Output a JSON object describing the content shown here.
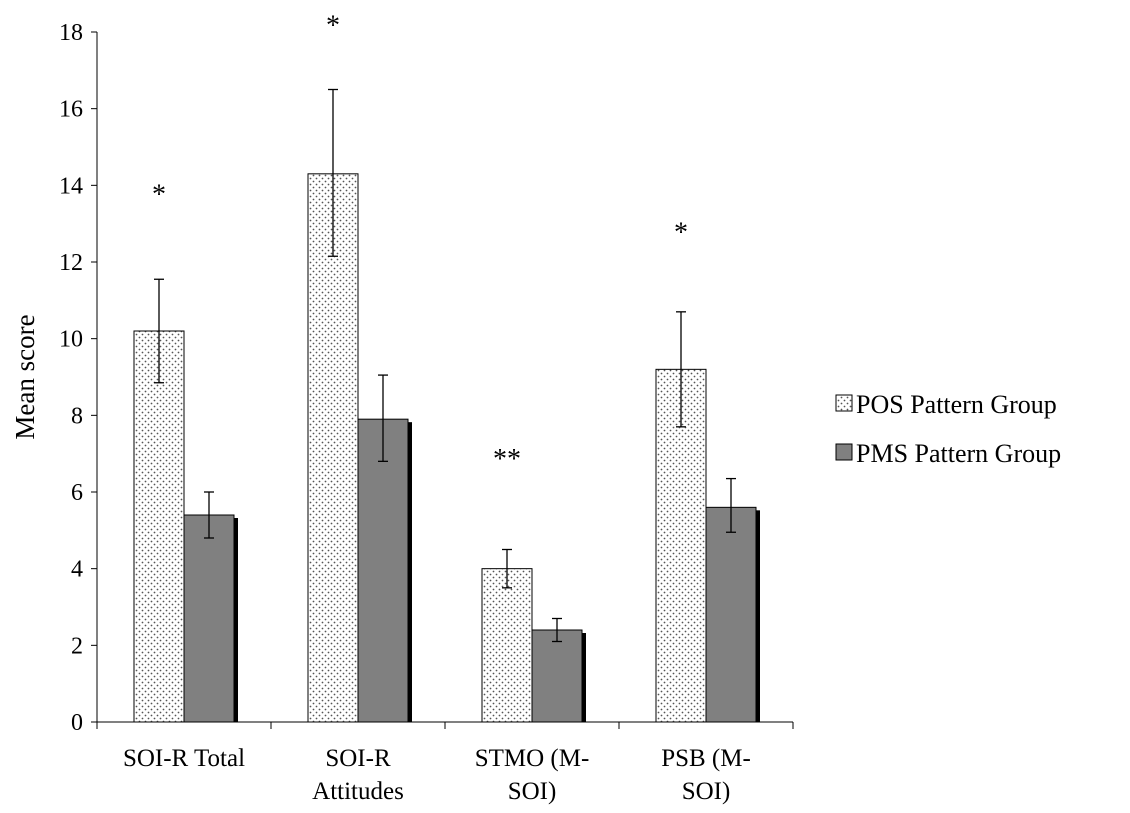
{
  "chart_data": {
    "type": "bar",
    "ylabel": "Mean score",
    "ylim": [
      0,
      18
    ],
    "yticks": [
      0,
      2,
      4,
      6,
      8,
      10,
      12,
      14,
      16,
      18
    ],
    "categories": [
      [
        "SOI-R Total"
      ],
      [
        "SOI-R",
        "Attitudes"
      ],
      [
        "STMO (M-",
        "SOI)"
      ],
      [
        "PSB (M-",
        "SOI)"
      ]
    ],
    "series": [
      {
        "name": "POS Pattern Group",
        "values": [
          10.2,
          14.3,
          4.0,
          9.2
        ],
        "error": [
          [
            8.85,
            11.55
          ],
          [
            12.15,
            16.5
          ],
          [
            3.5,
            4.5
          ],
          [
            7.7,
            10.7
          ]
        ],
        "fill": "dotted",
        "color": "#ffffff"
      },
      {
        "name": "PMS Pattern Group",
        "values": [
          5.4,
          7.9,
          2.4,
          5.6
        ],
        "error": [
          [
            4.8,
            6.0
          ],
          [
            6.8,
            9.05
          ],
          [
            2.1,
            2.7
          ],
          [
            4.95,
            6.35
          ]
        ],
        "fill": "solid",
        "color": "#808080"
      }
    ],
    "annotations": [
      {
        "category": 0,
        "text": "*",
        "y": 14.0
      },
      {
        "category": 1,
        "text": "*",
        "y": 18.4
      },
      {
        "category": 2,
        "text": "**",
        "y": 7.1
      },
      {
        "category": 3,
        "text": "*",
        "y": 13.0
      }
    ],
    "legend": "right"
  }
}
